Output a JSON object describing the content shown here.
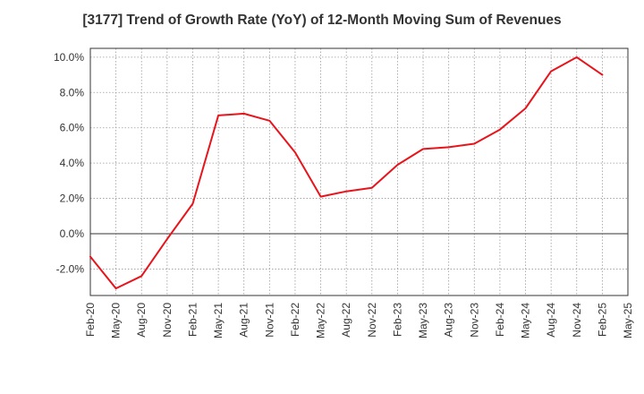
{
  "chart_data": {
    "type": "line",
    "title": "[3177]  Trend of Growth Rate (YoY) of 12-Month Moving Sum of Revenues",
    "xlabel": "",
    "ylabel": "",
    "x_tick_labels": [
      "Feb-20",
      "May-20",
      "Aug-20",
      "Nov-20",
      "Feb-21",
      "May-21",
      "Aug-21",
      "Nov-21",
      "Feb-22",
      "May-22",
      "Aug-22",
      "Nov-22",
      "Feb-23",
      "May-23",
      "Aug-23",
      "Nov-23",
      "Feb-24",
      "May-24",
      "Aug-24",
      "Nov-24",
      "Feb-25",
      "May-25"
    ],
    "y_tick_labels": [
      "-2.0%",
      "0.0%",
      "2.0%",
      "4.0%",
      "6.0%",
      "8.0%",
      "10.0%"
    ],
    "y_ticks": [
      -2,
      0,
      2,
      4,
      6,
      8,
      10
    ],
    "ylim": [
      -3.5,
      10.5
    ],
    "grid": true,
    "line_color": "#e8141b",
    "series": [
      {
        "x": [
          "Feb-20",
          "May-20",
          "Aug-20",
          "Nov-20",
          "Feb-21",
          "May-21",
          "Aug-21",
          "Nov-21",
          "Feb-22",
          "May-22",
          "Aug-22",
          "Nov-22",
          "Feb-23",
          "May-23",
          "Aug-23",
          "Nov-23",
          "Feb-24",
          "May-24",
          "Aug-24",
          "Nov-24",
          "Feb-25"
        ],
        "values": [
          -1.3,
          -3.1,
          -2.4,
          -0.3,
          1.7,
          6.7,
          6.8,
          6.4,
          4.6,
          2.1,
          2.4,
          2.6,
          3.9,
          4.8,
          4.9,
          5.1,
          5.9,
          7.1,
          9.2,
          10.0,
          9.0
        ]
      }
    ]
  }
}
